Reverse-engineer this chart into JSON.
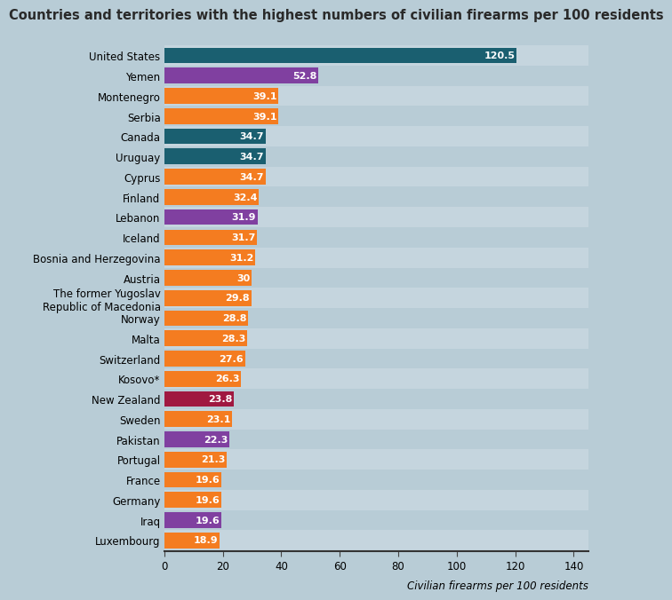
{
  "title": "Countries and territories with the highest numbers of civilian firearms per 100 residents",
  "xlabel": "Civilian firearms per 100 residents",
  "categories": [
    "Luxembourg",
    "Iraq",
    "Germany",
    "France",
    "Portugal",
    "Pakistan",
    "Sweden",
    "New Zealand",
    "Kosovo*",
    "Switzerland",
    "Malta",
    "Norway",
    "The former Yugoslav\nRepublic of Macedonia",
    "Austria",
    "Bosnia and Herzegovina",
    "Iceland",
    "Lebanon",
    "Finland",
    "Cyprus",
    "Uruguay",
    "Canada",
    "Serbia",
    "Montenegro",
    "Yemen",
    "United States"
  ],
  "values": [
    18.9,
    19.6,
    19.6,
    19.6,
    21.3,
    22.3,
    23.1,
    23.8,
    26.3,
    27.6,
    28.3,
    28.8,
    29.8,
    30.0,
    31.2,
    31.7,
    31.9,
    32.4,
    34.7,
    34.7,
    34.7,
    39.1,
    39.1,
    52.8,
    120.5
  ],
  "colors": [
    "#f47c20",
    "#8040a0",
    "#f47c20",
    "#f47c20",
    "#f47c20",
    "#8040a0",
    "#f47c20",
    "#a01840",
    "#f47c20",
    "#f47c20",
    "#f47c20",
    "#f47c20",
    "#f47c20",
    "#f47c20",
    "#f47c20",
    "#f47c20",
    "#8040a0",
    "#f47c20",
    "#f47c20",
    "#1a5f70",
    "#1a5f70",
    "#f47c20",
    "#f47c20",
    "#8040a0",
    "#1a5f70"
  ],
  "row_colors": [
    "#c5d5de",
    "#b8ccd6"
  ],
  "background_color": "#b8ccd6",
  "title_fontsize": 10.5,
  "label_fontsize": 8.5,
  "value_fontsize": 8,
  "xlim": [
    0,
    145
  ],
  "xticks": [
    0,
    20,
    40,
    60,
    80,
    100,
    120,
    140
  ]
}
